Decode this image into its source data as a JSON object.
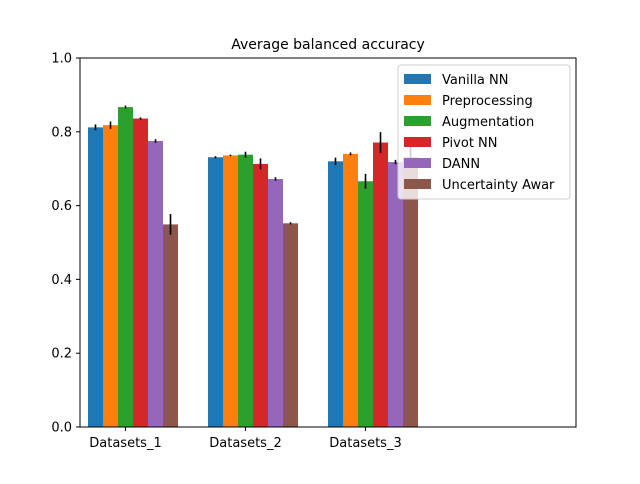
{
  "chart_data": {
    "type": "bar",
    "title": "Average balanced accuracy",
    "xlabel": "",
    "ylabel": "",
    "ylim": [
      0.0,
      1.0
    ],
    "yticks": [
      "0.0",
      "0.2",
      "0.4",
      "0.6",
      "0.8",
      "1.0"
    ],
    "categories": [
      "Datasets_1",
      "Datasets_2",
      "Datasets_3"
    ],
    "legend_position": "top-right",
    "grid": false,
    "series": [
      {
        "name": "Vanilla NN",
        "color": "#1f77b4",
        "values": [
          0.812,
          0.731,
          0.72
        ],
        "errors": [
          0.008,
          0.003,
          0.01
        ]
      },
      {
        "name": "Preprocessing",
        "color": "#ff7f0e",
        "values": [
          0.818,
          0.736,
          0.74
        ],
        "errors": [
          0.01,
          0.002,
          0.004
        ]
      },
      {
        "name": "Augmentation",
        "color": "#2ca02c",
        "values": [
          0.867,
          0.738,
          0.666
        ],
        "errors": [
          0.004,
          0.008,
          0.02
        ]
      },
      {
        "name": "Pivot NN",
        "color": "#d62728",
        "values": [
          0.836,
          0.713,
          0.771
        ],
        "errors": [
          0.003,
          0.015,
          0.028
        ]
      },
      {
        "name": "DANN",
        "color": "#9467bd",
        "values": [
          0.775,
          0.672,
          0.718
        ],
        "errors": [
          0.005,
          0.005,
          0.006
        ]
      },
      {
        "name": "Uncertainty Awar",
        "color": "#8c564b",
        "values": [
          0.549,
          0.552,
          0.731
        ],
        "errors": [
          0.028,
          0.003,
          0.03
        ]
      }
    ]
  }
}
